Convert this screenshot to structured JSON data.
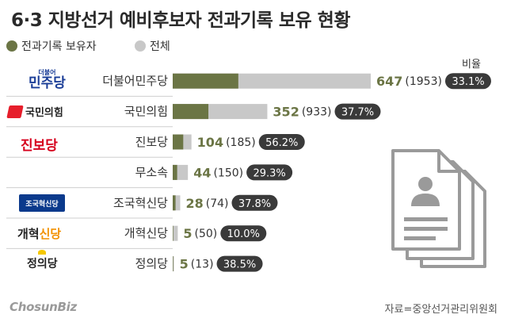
{
  "title": "6·3 지방선거 예비후보자 전과기록 보유 현황",
  "legend": {
    "criminal": {
      "label": "전과기록 보유자",
      "color": "#6b7545"
    },
    "total": {
      "label": "전체",
      "color": "#c8c8c8"
    }
  },
  "ratio_header": "비율",
  "source": "자료=중앙선거관리위원회",
  "brand": "ChosunBiz",
  "logos": {
    "democratic": {
      "small": "더불어",
      "main": "민주당"
    },
    "ppp": "국민의힘",
    "progressive": "진보당",
    "rebuilding": "조국혁신당",
    "reform": {
      "a": "개혁",
      "b": "신당"
    },
    "justice": "정의당"
  },
  "chart_data": {
    "type": "bar",
    "categories": [
      "더불어민주당",
      "국민의힘",
      "진보당",
      "무소속",
      "조국혁신당",
      "개혁신당",
      "정의당"
    ],
    "series": [
      {
        "name": "전과기록 보유자",
        "values": [
          647,
          352,
          104,
          44,
          28,
          5,
          5
        ],
        "color": "#6b7545"
      },
      {
        "name": "전체",
        "values": [
          1953,
          933,
          185,
          150,
          74,
          50,
          13
        ],
        "color": "#c8c8c8"
      }
    ],
    "totals_text": [
      "(1953)",
      "(933)",
      "(185)",
      "(150)",
      "(74)",
      "(50)",
      "(13)"
    ],
    "ratios": [
      "33.1%",
      "37.7%",
      "56.2%",
      "29.3%",
      "37.8%",
      "10.0%",
      "38.5%"
    ],
    "title": "6·3 지방선거 예비후보자 전과기록 보유 현황"
  }
}
